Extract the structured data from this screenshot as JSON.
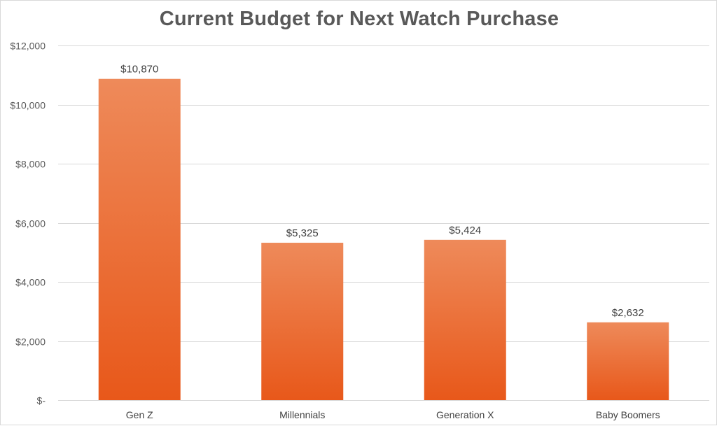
{
  "chart_data": {
    "type": "bar",
    "title": "Current Budget for Next Watch Purchase",
    "xlabel": "",
    "ylabel": "",
    "categories": [
      "Gen Z",
      "Millennials",
      "Generation X",
      "Baby Boomers"
    ],
    "values": [
      10870,
      5325,
      5424,
      2632
    ],
    "data_labels": [
      "$10,870",
      "$5,325",
      "$5,424",
      "$2,632"
    ],
    "ylim": [
      0,
      12000
    ],
    "y_ticks": [
      0,
      2000,
      4000,
      6000,
      8000,
      10000,
      12000
    ],
    "y_tick_labels": [
      "$-",
      "$2,000",
      "$4,000",
      "$6,000",
      "$8,000",
      "$10,000",
      "$12,000"
    ],
    "grid": true,
    "legend": "none",
    "colors": {
      "bar_top": "#ee8a5a",
      "bar_bottom": "#e8581a",
      "gridline": "#d9d9d9",
      "title": "#595959"
    }
  }
}
